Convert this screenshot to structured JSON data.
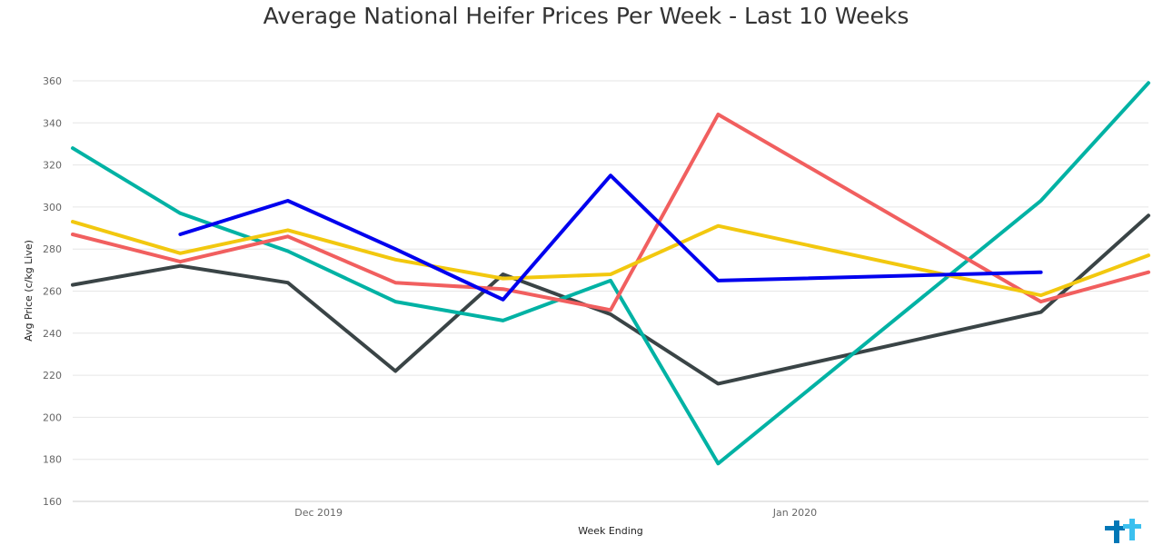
{
  "chart_data": {
    "type": "line",
    "title": "Average National Heifer Prices Per Week - Last 10 Weeks",
    "xlabel": "Week Ending",
    "ylabel": "Avg Price (c/kg Live)",
    "ylim": [
      160,
      360
    ],
    "yticks": [
      160,
      180,
      200,
      220,
      240,
      260,
      280,
      300,
      320,
      340,
      360
    ],
    "x": [
      "2019-11-15",
      "2019-11-22",
      "2019-11-29",
      "2019-12-06",
      "2019-12-13",
      "2019-12-20",
      "2019-12-27",
      "2020-01-03",
      "2020-01-10",
      "2020-01-17",
      "2020-01-24"
    ],
    "xlim": [
      "2019-11-15",
      "2020-01-24"
    ],
    "xticks": [
      {
        "date": "2019-12-01",
        "label": "Dec 2019"
      },
      {
        "date": "2020-01-01",
        "label": "Jan 2020"
      }
    ],
    "grid": true,
    "legend": "none",
    "series": [
      {
        "color": "#3a4446",
        "values": [
          263,
          272,
          264,
          222,
          268,
          249,
          216,
          null,
          null,
          250,
          296
        ]
      },
      {
        "color": "#00b2a4",
        "values": [
          328,
          297,
          279,
          255,
          246,
          265,
          178,
          null,
          null,
          303,
          359
        ]
      },
      {
        "color": "#f15f5f",
        "values": [
          287,
          274,
          286,
          264,
          261,
          251,
          344,
          null,
          null,
          255,
          269
        ]
      },
      {
        "color": "#f2c80f",
        "values": [
          293,
          278,
          289,
          275,
          266,
          268,
          291,
          null,
          null,
          258,
          277
        ]
      },
      {
        "color": "#0000ee",
        "values": [
          null,
          287,
          303,
          280,
          256,
          315,
          265,
          null,
          null,
          269,
          null
        ]
      }
    ]
  },
  "logo": {
    "icon": "brand-logo-icon",
    "colors": [
      "#0077b6",
      "#3cc0ef"
    ]
  }
}
